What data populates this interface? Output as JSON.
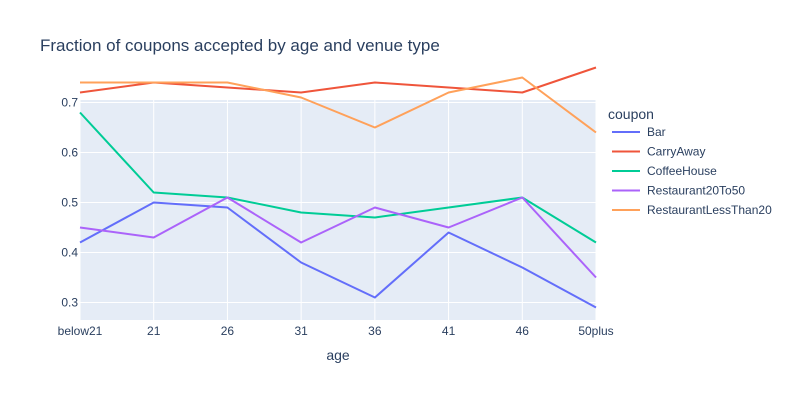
{
  "chart_data": {
    "type": "line",
    "title": "Fraction of coupons accepted by age and venue type",
    "xlabel": "age",
    "ylabel": "",
    "categories": [
      "below21",
      "21",
      "26",
      "31",
      "36",
      "41",
      "46",
      "50plus"
    ],
    "yticks": [
      0.3,
      0.4,
      0.5,
      0.6,
      0.7
    ],
    "ylim": [
      0.265,
      0.705
    ],
    "grid": true,
    "legend": {
      "title": "coupon",
      "placement": "right"
    },
    "plot_background": "#e5ecf6",
    "series": [
      {
        "name": "Bar",
        "color": "#636efa",
        "values": [
          0.42,
          0.5,
          0.49,
          0.38,
          0.31,
          0.44,
          0.37,
          0.29
        ]
      },
      {
        "name": "CarryAway",
        "color": "#ef553b",
        "values": [
          0.72,
          0.74,
          0.73,
          0.72,
          0.74,
          0.73,
          0.72,
          0.77
        ]
      },
      {
        "name": "CoffeeHouse",
        "color": "#00cc96",
        "values": [
          0.68,
          0.52,
          0.51,
          0.48,
          0.47,
          0.49,
          0.51,
          0.42
        ]
      },
      {
        "name": "Restaurant20To50",
        "color": "#ab63fa",
        "values": [
          0.45,
          0.43,
          0.51,
          0.42,
          0.49,
          0.45,
          0.51,
          0.35
        ]
      },
      {
        "name": "RestaurantLessThan20",
        "color": "#ffa15a",
        "values": [
          0.74,
          0.74,
          0.74,
          0.71,
          0.65,
          0.72,
          0.75,
          0.64
        ]
      }
    ]
  }
}
